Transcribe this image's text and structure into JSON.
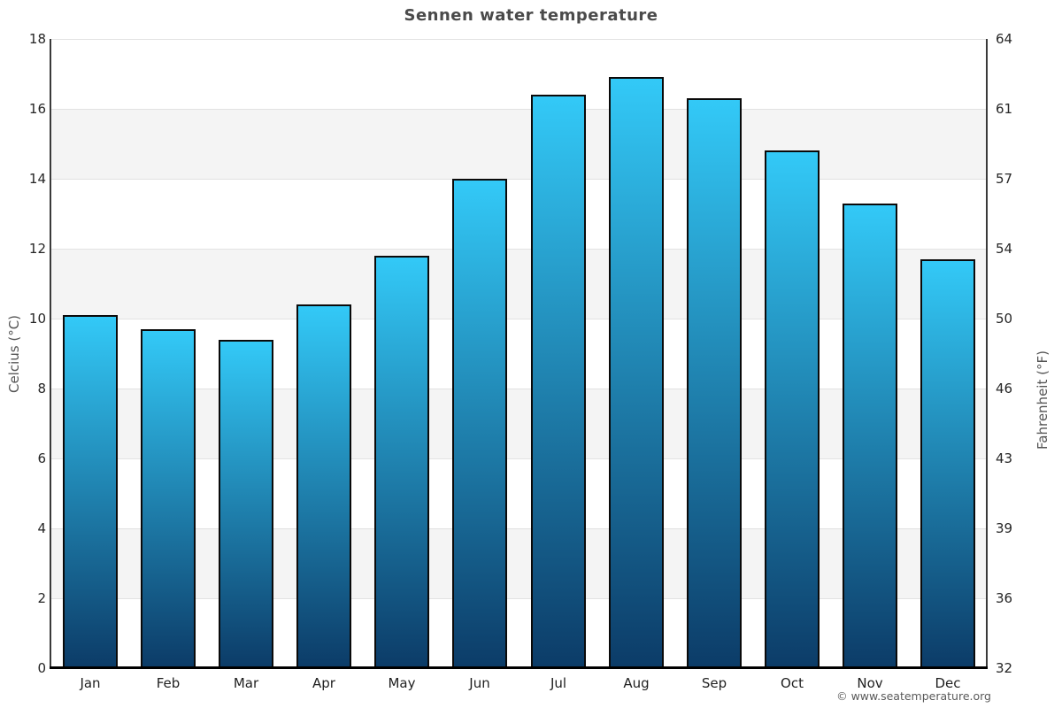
{
  "page": {
    "copyright": "© www.seatemperature.org"
  },
  "chart_data": {
    "type": "bar",
    "title": "Sennen water temperature",
    "categories": [
      "Jan",
      "Feb",
      "Mar",
      "Apr",
      "May",
      "Jun",
      "Jul",
      "Aug",
      "Sep",
      "Oct",
      "Nov",
      "Dec"
    ],
    "values": [
      10.1,
      9.7,
      9.4,
      10.4,
      11.8,
      14.0,
      16.4,
      16.9,
      16.3,
      14.8,
      13.3,
      11.7
    ],
    "xlabel": "",
    "ylabel_left": "Celcius (°C)",
    "ylabel_right": "Fahrenheit (°F)",
    "yticks_left": [
      "18",
      "16",
      "14",
      "12",
      "10",
      "8",
      "6",
      "4",
      "2",
      "0"
    ],
    "yticks_right": [
      "64",
      "61",
      "57",
      "54",
      "50",
      "46",
      "43",
      "39",
      "36",
      "32"
    ],
    "ylim": [
      0,
      18
    ],
    "grid": "horizontal bands every 2°C, alternating white / light gray",
    "legend": "none",
    "colors": {
      "bar_gradient_top": "#33C9F7",
      "bar_gradient_bottom": "#0C3C68",
      "bar_border": "#0A0A0A",
      "band_shade": "#F4F4F4",
      "band_plain": "#FFFFFF",
      "gridline": "#E2E2E2",
      "axis_side_line": "#3A3A3A",
      "axis_bottom_line": "#000000",
      "title_text": "#4A4A4A",
      "tick_text": "#262626",
      "axis_title_text": "#555555",
      "copyright_text": "#5A5A5A"
    }
  }
}
